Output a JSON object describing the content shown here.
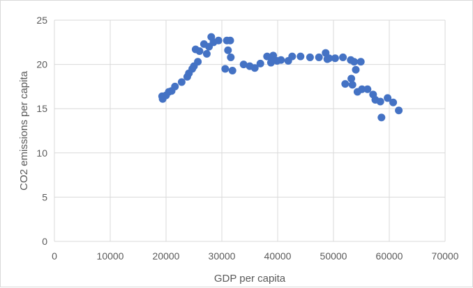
{
  "chart_data": {
    "type": "scatter",
    "xlabel": "GDP per capita",
    "ylabel": "CO2 emissions per capita",
    "xlim": [
      0,
      70000
    ],
    "ylim": [
      0,
      25
    ],
    "x_ticks": [
      0,
      10000,
      20000,
      30000,
      40000,
      50000,
      60000,
      70000
    ],
    "y_ticks": [
      0,
      5,
      10,
      15,
      20,
      25
    ],
    "x_tick_labels": [
      "0",
      "10000",
      "20000",
      "30000",
      "40000",
      "50000",
      "60000",
      "70000"
    ],
    "y_tick_labels": [
      "0",
      "5",
      "10",
      "15",
      "20",
      "25"
    ],
    "grid": true,
    "legend": "none",
    "marker_color": "#4472c4",
    "series": [
      {
        "points": [
          [
            19300,
            16.4
          ],
          [
            19400,
            16.1
          ],
          [
            20000,
            16.5
          ],
          [
            20500,
            16.9
          ],
          [
            21000,
            17.0
          ],
          [
            21600,
            17.5
          ],
          [
            22800,
            18.0
          ],
          [
            23800,
            18.6
          ],
          [
            24100,
            19.0
          ],
          [
            24700,
            19.5
          ],
          [
            25000,
            19.8
          ],
          [
            25300,
            21.7
          ],
          [
            25700,
            20.3
          ],
          [
            26000,
            21.5
          ],
          [
            26800,
            22.3
          ],
          [
            27300,
            21.2
          ],
          [
            27700,
            22.0
          ],
          [
            28100,
            23.1
          ],
          [
            28500,
            22.5
          ],
          [
            29400,
            22.7
          ],
          [
            30600,
            19.5
          ],
          [
            30900,
            22.7
          ],
          [
            31100,
            21.6
          ],
          [
            31500,
            22.7
          ],
          [
            31600,
            20.8
          ],
          [
            31900,
            19.3
          ],
          [
            33900,
            20.0
          ],
          [
            35000,
            19.8
          ],
          [
            35900,
            19.6
          ],
          [
            36900,
            20.1
          ],
          [
            38100,
            20.9
          ],
          [
            38800,
            20.2
          ],
          [
            39000,
            20.6
          ],
          [
            39200,
            21.0
          ],
          [
            39900,
            20.4
          ],
          [
            40600,
            20.5
          ],
          [
            41900,
            20.4
          ],
          [
            42600,
            20.9
          ],
          [
            44100,
            20.9
          ],
          [
            45800,
            20.8
          ],
          [
            47400,
            20.8
          ],
          [
            48600,
            21.3
          ],
          [
            48900,
            20.6
          ],
          [
            49200,
            20.7
          ],
          [
            50300,
            20.7
          ],
          [
            51700,
            20.8
          ],
          [
            52100,
            17.8
          ],
          [
            53100,
            20.5
          ],
          [
            53200,
            18.4
          ],
          [
            53400,
            17.7
          ],
          [
            53700,
            20.3
          ],
          [
            54000,
            19.4
          ],
          [
            54300,
            16.9
          ],
          [
            54900,
            20.3
          ],
          [
            55100,
            17.2
          ],
          [
            56100,
            17.2
          ],
          [
            57100,
            16.6
          ],
          [
            57500,
            16.0
          ],
          [
            58400,
            15.8
          ],
          [
            58600,
            14.0
          ],
          [
            59700,
            16.2
          ],
          [
            60700,
            15.7
          ],
          [
            61700,
            14.8
          ]
        ]
      }
    ]
  }
}
